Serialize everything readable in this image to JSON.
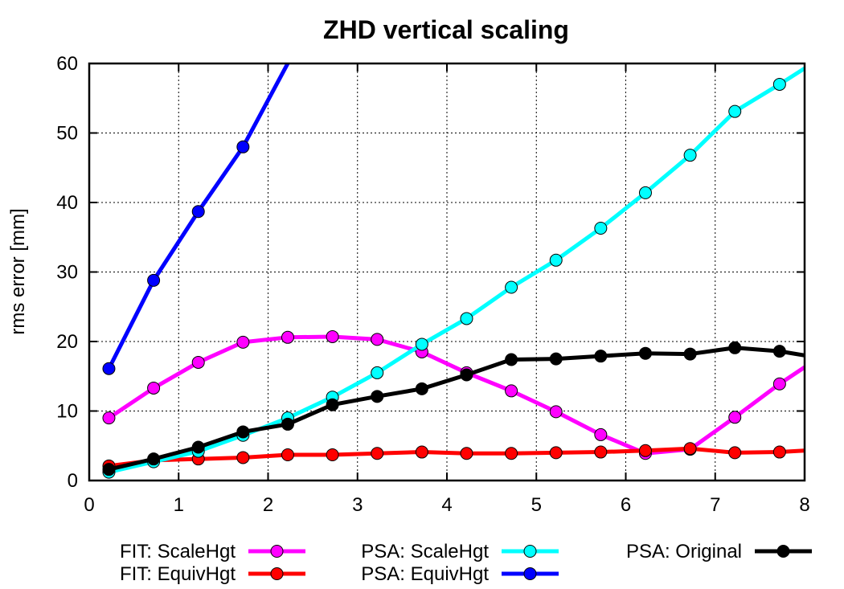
{
  "chart_data": {
    "type": "line",
    "title": "ZHD vertical scaling",
    "xlabel": "",
    "ylabel": "rms error [mm]",
    "xlim": [
      0,
      8
    ],
    "ylim": [
      0,
      60
    ],
    "xticks": [
      0,
      1,
      2,
      3,
      4,
      5,
      6,
      7,
      8
    ],
    "yticks": [
      0,
      10,
      20,
      30,
      40,
      50,
      60
    ],
    "grid": true,
    "legend_position": "bottom",
    "series": [
      {
        "name": "FIT: ScaleHgt",
        "color": "#ff00ff",
        "x": [
          0.22,
          0.72,
          1.22,
          1.72,
          2.22,
          2.72,
          3.22,
          3.72,
          4.22,
          4.72,
          5.22,
          5.72,
          6.22,
          6.72,
          7.22,
          7.72,
          8.0
        ],
        "y": [
          9.0,
          13.3,
          17.0,
          19.9,
          20.6,
          20.7,
          20.3,
          18.5,
          15.5,
          12.9,
          9.9,
          6.6,
          3.9,
          4.5,
          9.1,
          13.9,
          16.3
        ]
      },
      {
        "name": "FIT: EquivHgt",
        "color": "#ff0000",
        "x": [
          0.22,
          0.72,
          1.22,
          1.72,
          2.22,
          2.72,
          3.22,
          3.72,
          4.22,
          4.72,
          5.22,
          5.72,
          6.22,
          6.72,
          7.22,
          7.72,
          8.0
        ],
        "y": [
          2.1,
          2.9,
          3.1,
          3.3,
          3.7,
          3.7,
          3.9,
          4.1,
          3.9,
          3.9,
          4.0,
          4.1,
          4.3,
          4.6,
          4.0,
          4.1,
          4.3
        ]
      },
      {
        "name": "PSA: ScaleHgt",
        "color": "#00ffff",
        "x": [
          0.22,
          0.72,
          1.22,
          1.72,
          2.22,
          2.72,
          3.22,
          3.72,
          4.22,
          4.72,
          5.22,
          5.72,
          6.22,
          6.72,
          7.22,
          7.72,
          8.0
        ],
        "y": [
          1.2,
          2.7,
          4.2,
          6.5,
          9.0,
          12.0,
          15.5,
          19.6,
          23.3,
          27.8,
          31.7,
          36.3,
          41.4,
          46.8,
          53.1,
          57.0,
          59.3
        ]
      },
      {
        "name": "PSA: EquivHgt",
        "color": "#0000ff",
        "x": [
          0.22,
          0.72,
          1.22,
          1.72,
          2.22
        ],
        "y": [
          16.1,
          28.8,
          38.7,
          48.0,
          60.0
        ]
      },
      {
        "name": "PSA: Original",
        "color": "#000000",
        "x": [
          0.22,
          0.72,
          1.22,
          1.72,
          2.22,
          2.72,
          3.22,
          3.72,
          4.22,
          4.72,
          5.22,
          5.72,
          6.22,
          6.72,
          7.22,
          7.72,
          8.0
        ],
        "y": [
          1.6,
          3.1,
          4.8,
          7.0,
          8.1,
          10.9,
          12.1,
          13.2,
          15.2,
          17.4,
          17.5,
          17.9,
          18.3,
          18.2,
          19.1,
          18.6,
          18.0
        ]
      }
    ]
  }
}
